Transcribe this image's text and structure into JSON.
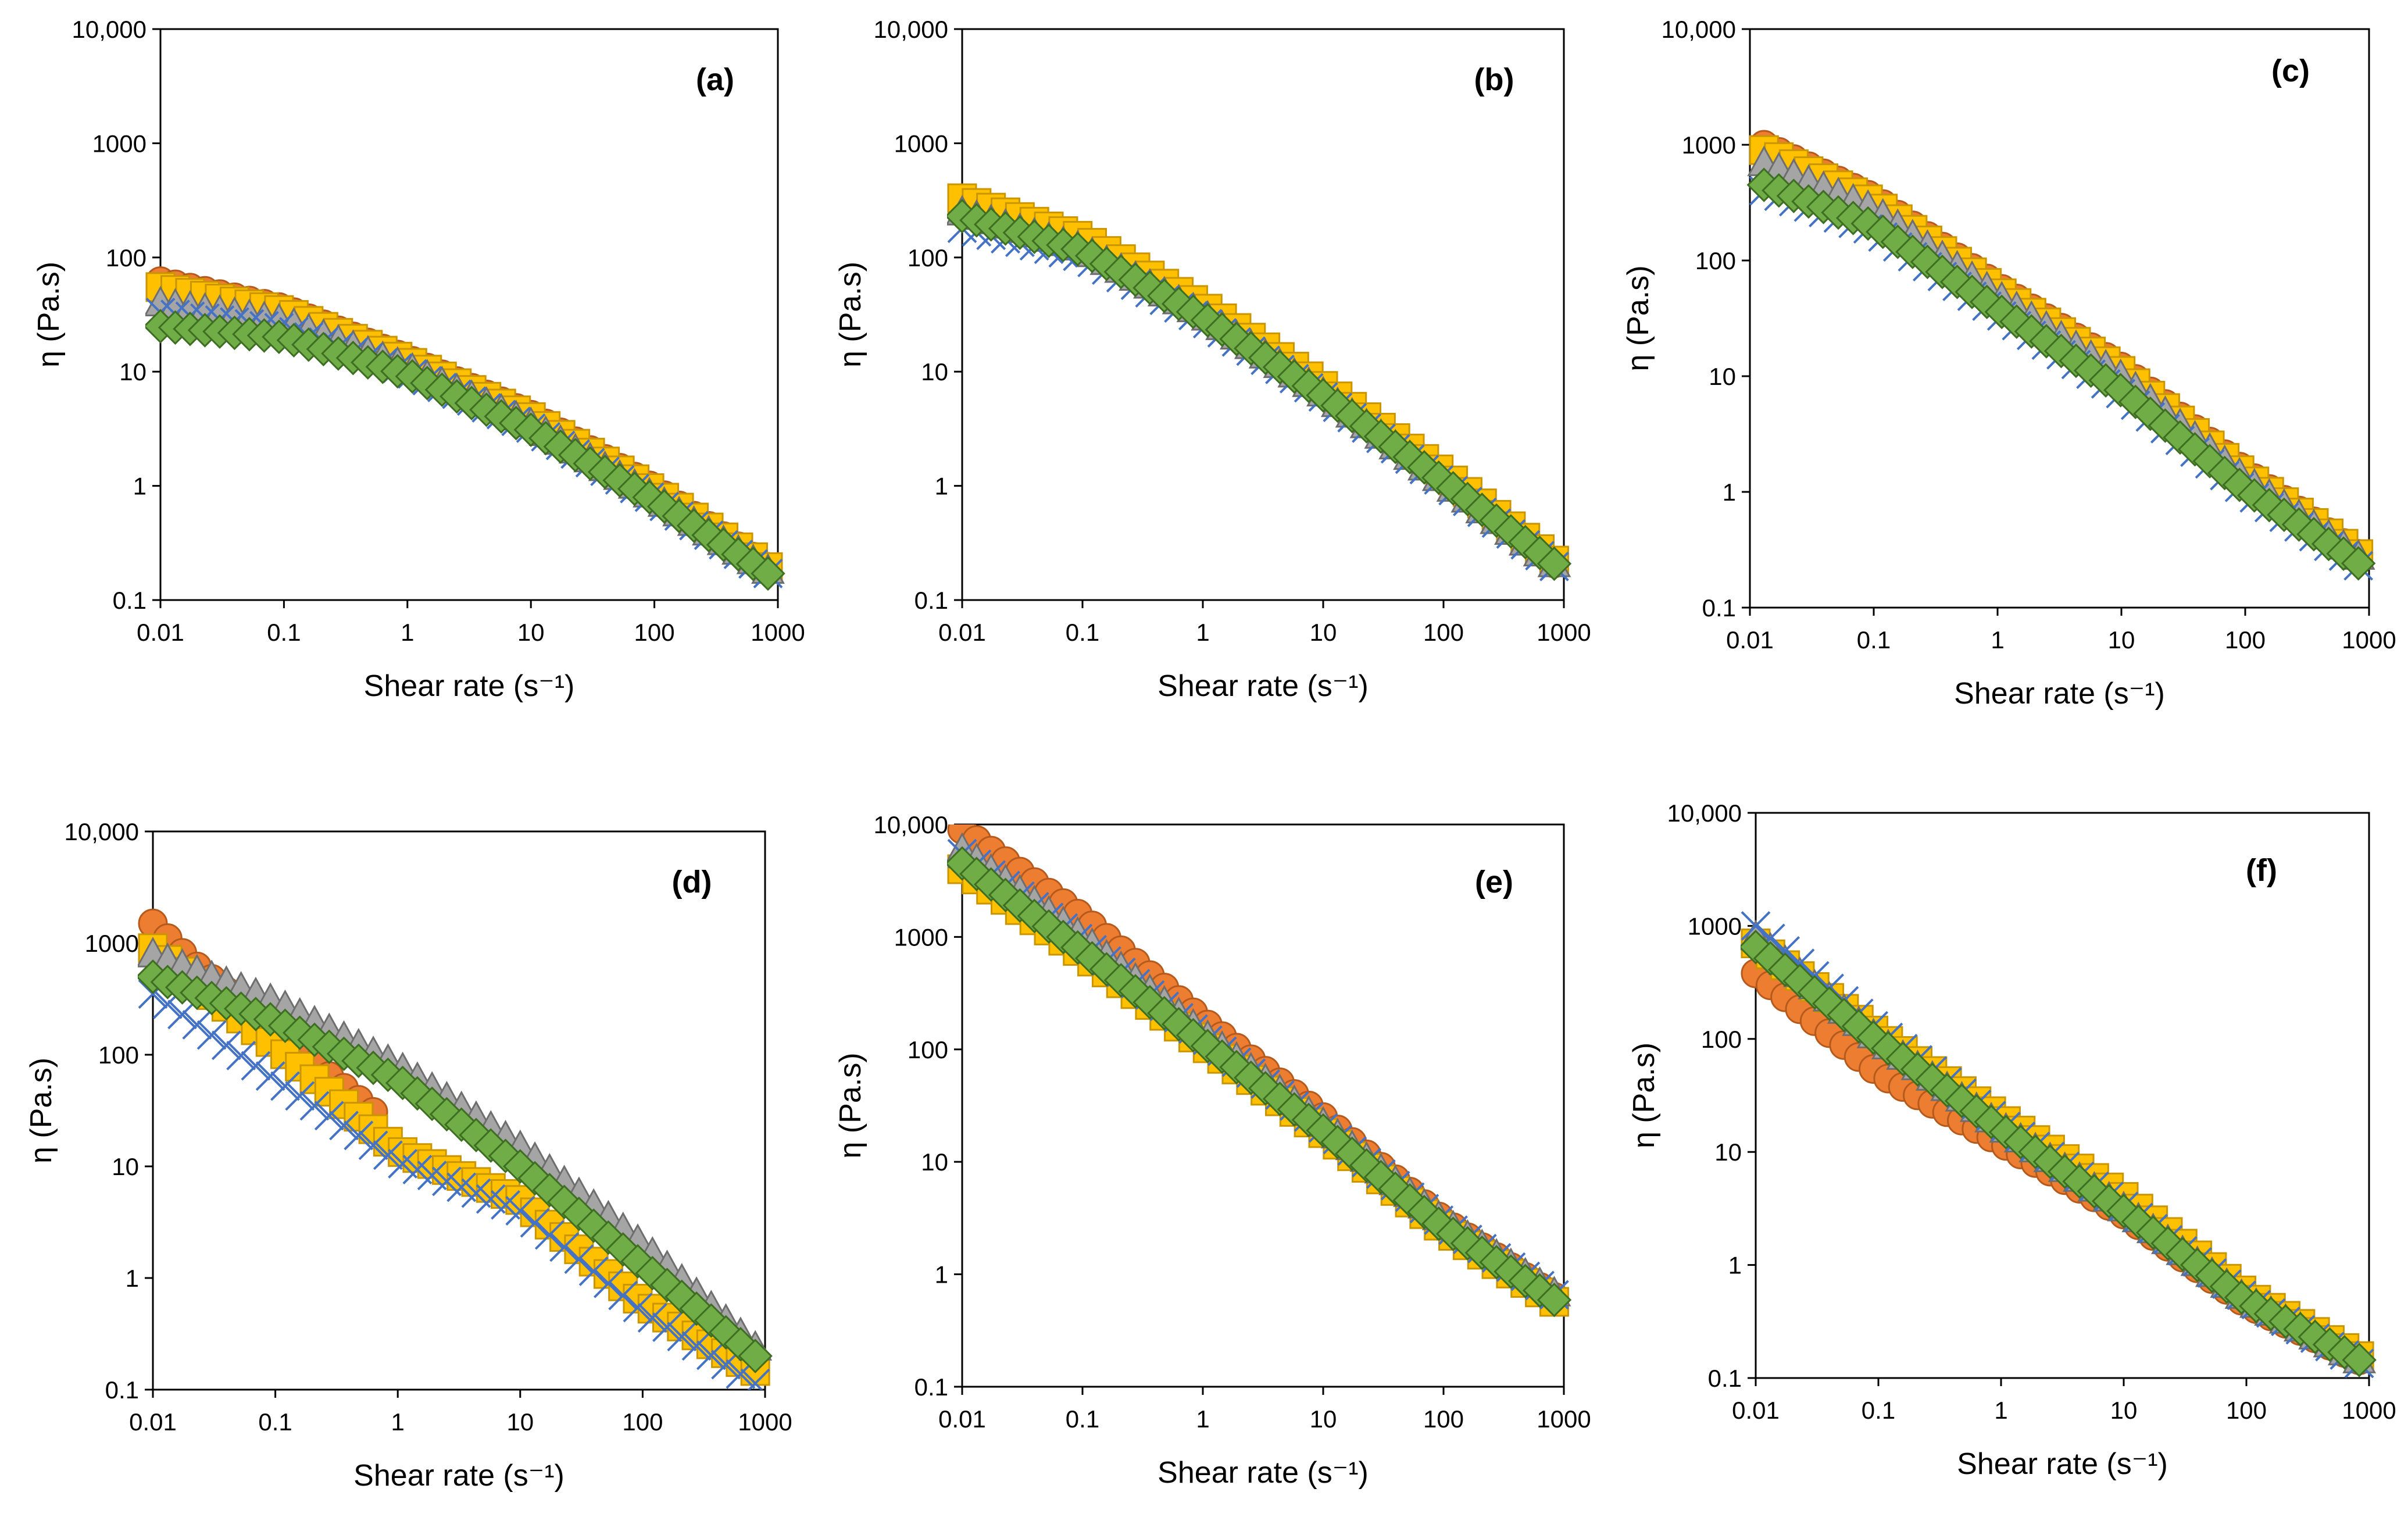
{
  "chart_data": [
    {
      "type": "scatter",
      "panel_label": "(a)",
      "xlabel": "Shear rate (s⁻¹)",
      "ylabel": "η (Pa.s)",
      "xscale": "log",
      "yscale": "log",
      "xlim": [
        0.01,
        1000
      ],
      "ylim": [
        0.1,
        10000
      ],
      "x_ticks": [
        "0.01",
        "0.1",
        "1",
        "10",
        "100",
        "1000"
      ],
      "y_ticks": [
        "0.1",
        "1",
        "10",
        "100",
        "1000",
        "10,000"
      ],
      "series": [
        {
          "name": "orange-circle",
          "x": [
            0.01,
            0.1,
            1,
            10,
            100,
            1000
          ],
          "values": [
            62,
            36,
            13,
            4.2,
            0.95,
            0.17
          ]
        },
        {
          "name": "yellow-square",
          "x": [
            0.01,
            0.1,
            1,
            10,
            100,
            1000
          ],
          "values": [
            55,
            34,
            12.5,
            4.0,
            0.9,
            0.17
          ]
        },
        {
          "name": "gray-triangle",
          "x": [
            0.01,
            0.1,
            1,
            10,
            100,
            1000
          ],
          "values": [
            40,
            28,
            11,
            3.5,
            0.8,
            0.16
          ]
        },
        {
          "name": "blue-cross",
          "x": [
            0.01,
            0.1,
            1,
            10,
            100,
            1000
          ],
          "values": [
            33,
            24,
            10,
            3.2,
            0.75,
            0.15
          ]
        },
        {
          "name": "green-diamond",
          "x": [
            0.01,
            0.1,
            1,
            10,
            100,
            1000
          ],
          "values": [
            25,
            20,
            9.5,
            3.1,
            0.75,
            0.15
          ]
        }
      ]
    },
    {
      "type": "scatter",
      "panel_label": "(b)",
      "xlabel": "Shear rate (s⁻¹)",
      "ylabel": "η (Pa.s)",
      "xscale": "log",
      "yscale": "log",
      "xlim": [
        0.01,
        1000
      ],
      "ylim": [
        0.1,
        10000
      ],
      "x_ticks": [
        "0.01",
        "0.1",
        "1",
        "10",
        "100",
        "1000"
      ],
      "y_ticks": [
        "0.1",
        "1",
        "10",
        "100",
        "1000",
        "10,000"
      ],
      "series": [
        {
          "name": "orange-circle",
          "x": [
            0.01,
            0.1,
            1,
            10,
            100,
            1000
          ],
          "values": [
            300,
            140,
            35,
            7,
            1.2,
            0.18
          ]
        },
        {
          "name": "yellow-square",
          "x": [
            0.01,
            0.1,
            1,
            10,
            100,
            1000
          ],
          "values": [
            330,
            150,
            38,
            7.5,
            1.3,
            0.19
          ]
        },
        {
          "name": "gray-triangle",
          "x": [
            0.01,
            0.1,
            1,
            10,
            100,
            1000
          ],
          "values": [
            250,
            120,
            32,
            6.5,
            1.1,
            0.18
          ]
        },
        {
          "name": "blue-cross",
          "x": [
            0.01,
            0.1,
            1,
            10,
            100,
            1000
          ],
          "values": [
            180,
            100,
            28,
            6,
            1.05,
            0.17
          ]
        },
        {
          "name": "green-diamond",
          "x": [
            0.01,
            0.1,
            1,
            10,
            100,
            1000
          ],
          "values": [
            230,
            115,
            30,
            6.2,
            1.1,
            0.18
          ]
        }
      ]
    },
    {
      "type": "scatter",
      "panel_label": "(c)",
      "xlabel": "Shear rate (s⁻¹)",
      "ylabel": "η (Pa.s)",
      "xscale": "log",
      "yscale": "log",
      "xlim": [
        0.01,
        1000
      ],
      "ylim": [
        0.1,
        10000
      ],
      "x_ticks": [
        "0.01",
        "0.1",
        "1",
        "10",
        "100",
        "1000"
      ],
      "y_ticks": [
        "0.1",
        "1",
        "10",
        "100",
        "1000",
        "10,000"
      ],
      "series": [
        {
          "name": "orange-circle",
          "x": [
            0.013,
            0.1,
            1,
            10,
            100,
            1000
          ],
          "values": [
            1000,
            350,
            60,
            12,
            1.5,
            0.25
          ]
        },
        {
          "name": "yellow-square",
          "x": [
            0.013,
            0.1,
            1,
            10,
            100,
            1000
          ],
          "values": [
            900,
            320,
            55,
            11,
            1.4,
            0.25
          ]
        },
        {
          "name": "gray-triangle",
          "x": [
            0.013,
            0.1,
            1,
            10,
            100,
            1000
          ],
          "values": [
            700,
            280,
            50,
            10,
            1.3,
            0.24
          ]
        },
        {
          "name": "blue-cross",
          "x": [
            0.013,
            0.1,
            1,
            10,
            100,
            1000
          ],
          "values": [
            400,
            180,
            35,
            7,
            1.0,
            0.2
          ]
        },
        {
          "name": "green-diamond",
          "x": [
            0.013,
            0.1,
            1,
            10,
            100,
            1000
          ],
          "values": [
            450,
            200,
            38,
            7.5,
            1.05,
            0.21
          ]
        }
      ]
    },
    {
      "type": "scatter",
      "panel_label": "(d)",
      "xlabel": "Shear rate (s⁻¹)",
      "ylabel": "η (Pa.s)",
      "xscale": "log",
      "yscale": "log",
      "xlim": [
        0.01,
        1000
      ],
      "ylim": [
        0.1,
        10000
      ],
      "x_ticks": [
        "0.01",
        "0.1",
        "1",
        "10",
        "100",
        "1000"
      ],
      "y_ticks": [
        "0.1",
        "1",
        "10",
        "100",
        "1000",
        "10,000"
      ],
      "series": [
        {
          "name": "orange-circle",
          "x": [
            0.01,
            0.02,
            0.05,
            0.1,
            0.3,
            0.7
          ],
          "values": [
            1500,
            700,
            300,
            150,
            60,
            28
          ]
        },
        {
          "name": "yellow-square",
          "x": [
            0.01,
            0.1,
            1,
            10,
            100,
            1000
          ],
          "values": [
            900,
            120,
            14,
            5,
            0.6,
            0.13
          ]
        },
        {
          "name": "gray-triangle",
          "x": [
            0.01,
            0.1,
            1,
            10,
            100,
            1000
          ],
          "values": [
            800,
            300,
            80,
            15,
            2,
            0.2
          ]
        },
        {
          "name": "blue-cross",
          "x": [
            0.01,
            0.1,
            1,
            10,
            100,
            1000
          ],
          "values": [
            350,
            60,
            11,
            4,
            0.5,
            0.1
          ]
        },
        {
          "name": "green-diamond",
          "x": [
            0.01,
            0.1,
            1,
            10,
            100,
            1000
          ],
          "values": [
            500,
            200,
            60,
            10,
            1.3,
            0.17
          ]
        }
      ]
    },
    {
      "type": "scatter",
      "panel_label": "(e)",
      "xlabel": "Shear rate (s⁻¹)",
      "ylabel": "η (Pa.s)",
      "xscale": "log",
      "yscale": "log",
      "xlim": [
        0.01,
        1000
      ],
      "ylim": [
        0.1,
        10000
      ],
      "x_ticks": [
        "0.01",
        "0.1",
        "1",
        "10",
        "100",
        "1000"
      ],
      "y_ticks": [
        "0.1",
        "1",
        "10",
        "100",
        "1000",
        "10,000"
      ],
      "series": [
        {
          "name": "orange-circle",
          "x": [
            0.01,
            0.1,
            1,
            10,
            100,
            1000
          ],
          "values": [
            9000,
            1500,
            180,
            25,
            3,
            0.55
          ]
        },
        {
          "name": "yellow-square",
          "x": [
            0.01,
            0.1,
            1,
            10,
            100,
            1000
          ],
          "values": [
            4000,
            700,
            110,
            18,
            2.5,
            0.5
          ]
        },
        {
          "name": "gray-triangle",
          "x": [
            0.01,
            0.1,
            1,
            10,
            100,
            1000
          ],
          "values": [
            6000,
            1000,
            140,
            22,
            3,
            0.6
          ]
        },
        {
          "name": "blue-cross",
          "x": [
            0.01,
            0.1,
            1,
            10,
            100,
            1000
          ],
          "values": [
            5500,
            900,
            130,
            20,
            2.8,
            0.58
          ]
        },
        {
          "name": "green-diamond",
          "x": [
            0.01,
            0.1,
            1,
            10,
            100,
            1000
          ],
          "values": [
            4500,
            750,
            115,
            19,
            2.6,
            0.52
          ]
        }
      ]
    },
    {
      "type": "scatter",
      "panel_label": "(f)",
      "xlabel": "Shear rate (s⁻¹)",
      "ylabel": "η (Pa.s)",
      "xscale": "log",
      "yscale": "log",
      "xlim": [
        0.01,
        1000
      ],
      "ylim": [
        0.1,
        10000
      ],
      "x_ticks": [
        "0.01",
        "0.1",
        "1",
        "10",
        "100",
        "1000"
      ],
      "y_ticks": [
        "0.1",
        "1",
        "10",
        "100",
        "1000",
        "10,000"
      ],
      "series": [
        {
          "name": "orange-circle",
          "x": [
            0.01,
            0.1,
            1,
            10,
            100,
            1000
          ],
          "values": [
            380,
            50,
            12,
            2.8,
            0.45,
            0.13
          ]
        },
        {
          "name": "yellow-square",
          "x": [
            0.01,
            0.1,
            1,
            10,
            100,
            1000
          ],
          "values": [
            700,
            110,
            20,
            4,
            0.55,
            0.14
          ]
        },
        {
          "name": "gray-triangle",
          "x": [
            0.01,
            0.1,
            1,
            10,
            100,
            1000
          ],
          "values": [
            800,
            100,
            17,
            3.2,
            0.5,
            0.13
          ]
        },
        {
          "name": "blue-cross",
          "x": [
            0.01,
            0.1,
            1,
            10,
            100,
            1000
          ],
          "values": [
            1000,
            120,
            18,
            3.3,
            0.5,
            0.12
          ]
        },
        {
          "name": "green-diamond",
          "x": [
            0.01,
            0.1,
            1,
            10,
            100,
            1000
          ],
          "values": [
            650,
            95,
            16,
            3.0,
            0.48,
            0.13
          ]
        }
      ]
    }
  ],
  "series_style": {
    "orange-circle": {
      "marker": "circle",
      "fill": "#ed7d31",
      "stroke": "#b55a1c"
    },
    "yellow-square": {
      "marker": "square",
      "fill": "#ffc000",
      "stroke": "#c99500"
    },
    "gray-triangle": {
      "marker": "triangle",
      "fill": "#a5a5a5",
      "stroke": "#6e6e6e"
    },
    "blue-cross": {
      "marker": "cross",
      "fill": "none",
      "stroke": "#4472c4"
    },
    "green-diamond": {
      "marker": "diamond",
      "fill": "#70ad47",
      "stroke": "#3e6e22"
    }
  }
}
